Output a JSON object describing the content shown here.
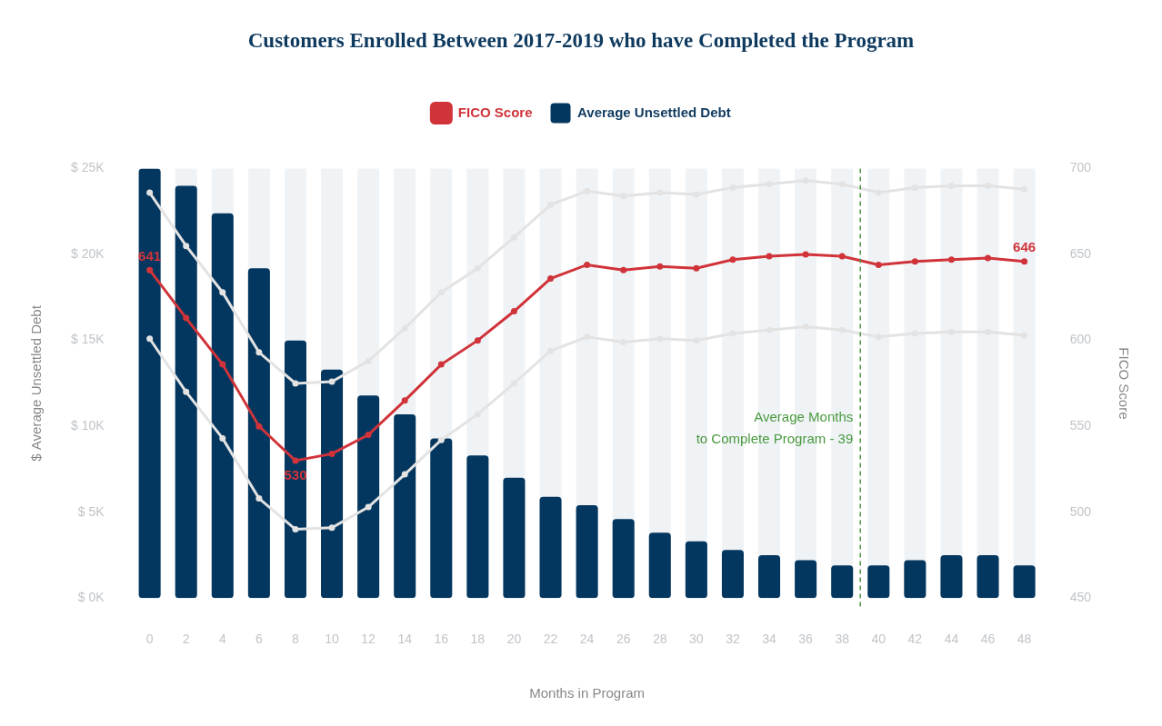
{
  "chart_data": {
    "type": "bar",
    "title": "Customers Enrolled Between 2017-2019 who have Completed the Program",
    "x_label": "Months in Program",
    "y_label": "$ Average Unsettled Debt",
    "y2_label": "FICO Score",
    "categories": [
      0,
      2,
      4,
      6,
      8,
      10,
      12,
      14,
      16,
      18,
      20,
      22,
      24,
      26,
      28,
      30,
      32,
      34,
      36,
      38,
      40,
      42,
      44,
      46,
      48
    ],
    "series": [
      {
        "name": "Average Unsettled Debt",
        "type": "bar",
        "color": "#04375f",
        "values": [
          25000,
          24000,
          22400,
          19200,
          15000,
          13300,
          11800,
          10700,
          9300,
          8300,
          7000,
          5900,
          5400,
          4600,
          3800,
          3300,
          2800,
          2500,
          2200,
          1900,
          1900,
          2200,
          2500,
          2500,
          1900
        ]
      },
      {
        "name": "FICO Score",
        "type": "line",
        "axis": "y2",
        "color": "#d0343a",
        "marker": "circle",
        "values": [
          641,
          613,
          586,
          550,
          530,
          534,
          545,
          565,
          586,
          600,
          617,
          636,
          644,
          641,
          643,
          642,
          647,
          649,
          650,
          649,
          644,
          646,
          647,
          648,
          646
        ],
        "value_labels": [
          "641",
          null,
          null,
          null,
          "530",
          null,
          null,
          null,
          null,
          null,
          null,
          null,
          null,
          null,
          null,
          null,
          null,
          null,
          null,
          null,
          null,
          null,
          null,
          null,
          "646"
        ]
      },
      {
        "type": "line",
        "axis": "y2",
        "color": "#e3e3e3",
        "marker": "circle",
        "values": [
          686,
          655,
          628,
          593,
          575,
          576,
          588,
          607,
          628,
          642,
          660,
          679,
          687,
          684,
          686,
          685,
          689,
          691,
          693,
          691,
          686,
          689,
          690,
          690,
          688
        ]
      },
      {
        "type": "line",
        "axis": "y2",
        "color": "#e3e3e3",
        "marker": "circle",
        "values": [
          601,
          570,
          543,
          508,
          490,
          491,
          503,
          522,
          542,
          557,
          575,
          594,
          602,
          599,
          601,
          600,
          604,
          606,
          608,
          606,
          602,
          604,
          605,
          605,
          603
        ]
      }
    ],
    "ylim": [
      0,
      25000
    ],
    "yticks": [
      {
        "value": 0,
        "label": "$ 0K"
      },
      {
        "value": 5000,
        "label": "$ 5K"
      },
      {
        "value": 10000,
        "label": "$ 10K"
      },
      {
        "value": 15000,
        "label": "$ 15K"
      },
      {
        "value": 20000,
        "label": "$ 20K"
      },
      {
        "value": 25000,
        "label": "$ 25K"
      }
    ],
    "y2lim": [
      450,
      700
    ],
    "y2ticks": [
      450,
      500,
      550,
      600,
      650,
      700
    ],
    "grid": false,
    "legend": "top",
    "annotations": [
      {
        "text": [
          "Average Months",
          "to Complete Program - 39"
        ],
        "x": 39,
        "color": "#4a9a3f",
        "line_style": "dashed"
      }
    ]
  }
}
